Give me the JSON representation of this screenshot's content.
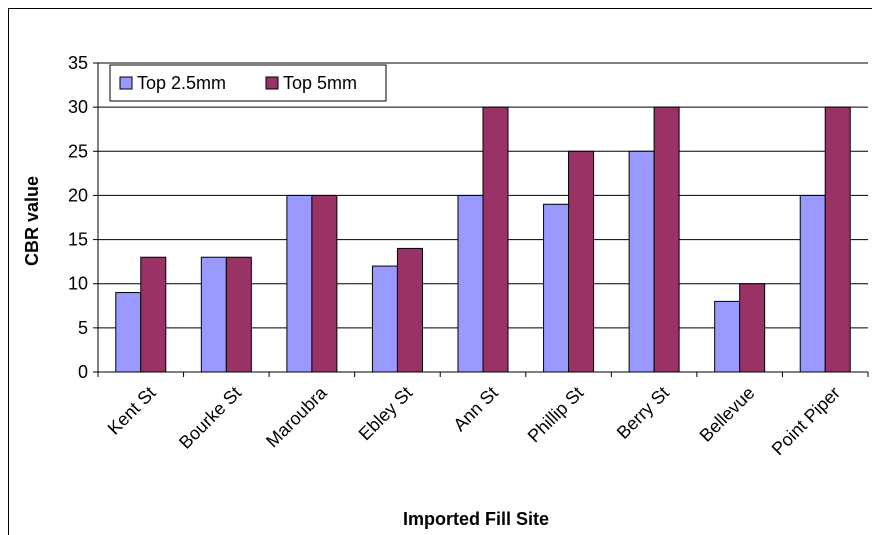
{
  "chart_data": {
    "type": "bar",
    "title": "",
    "xlabel": "Imported Fill Site",
    "ylabel": "CBR value",
    "categories": [
      "Kent St",
      "Bourke St",
      "Maroubra",
      "Ebley St",
      "Ann St",
      "Phillip St",
      "Berry St",
      "Bellevue",
      "Point Piper"
    ],
    "series": [
      {
        "name": "Top 2.5mm",
        "values": [
          9,
          13,
          20,
          12,
          20,
          19,
          25,
          8,
          20
        ],
        "color": "#9999ff"
      },
      {
        "name": "Top 5mm",
        "values": [
          13,
          13,
          20,
          14,
          30,
          25,
          30,
          10,
          30
        ],
        "color": "#993366"
      }
    ],
    "ylim": [
      0,
      35
    ],
    "yticks": [
      0,
      5,
      10,
      15,
      20,
      25,
      30,
      35
    ],
    "grid": true,
    "legend_position": "top-left"
  }
}
